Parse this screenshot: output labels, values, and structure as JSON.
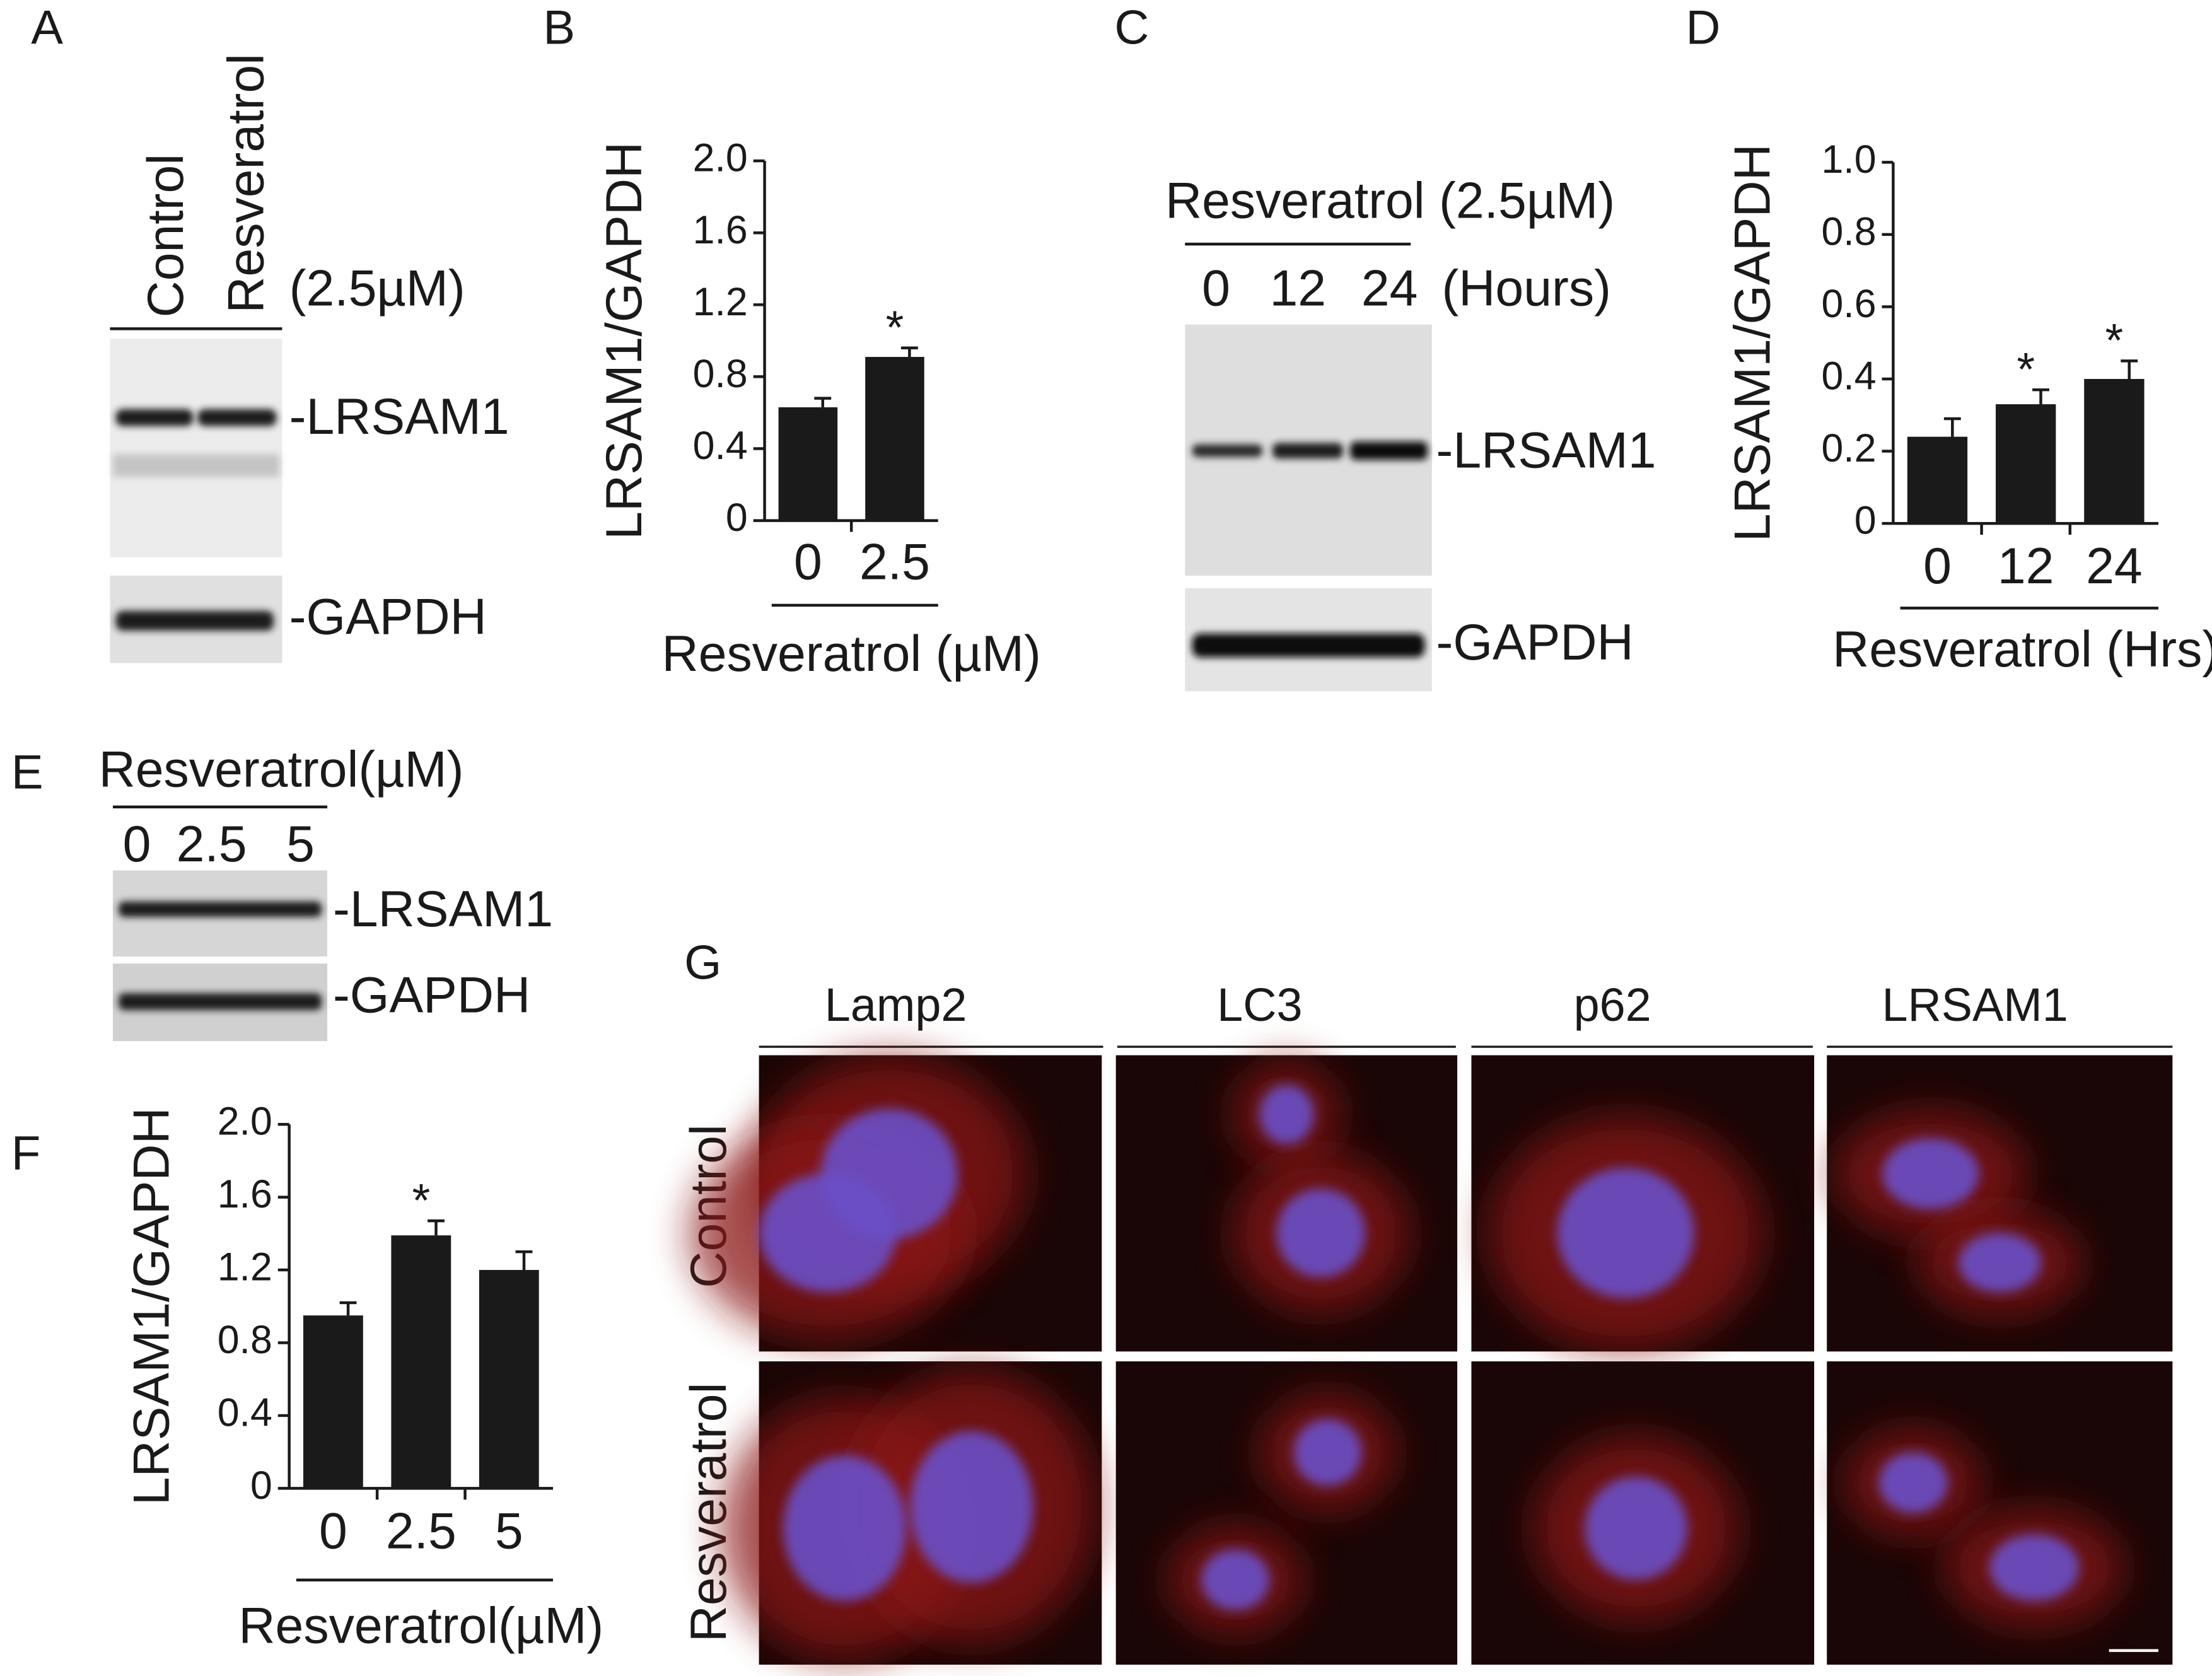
{
  "figure": {
    "A": {
      "label": "A",
      "lanes": [
        "Control",
        "Resveratrol"
      ],
      "treatment": "(2.5µM)",
      "bands": [
        "-LRSAM1",
        "-GAPDH"
      ]
    },
    "B": {
      "label": "B"
    },
    "C": {
      "label": "C",
      "treatment": "Resveratrol (2.5µM)",
      "lanes": [
        "0",
        "12",
        "24"
      ],
      "unit": "(Hours)",
      "bands": [
        "-LRSAM1",
        "-GAPDH"
      ]
    },
    "D": {
      "label": "D"
    },
    "E": {
      "label": "E",
      "treatment": "Resveratrol(µM)",
      "lanes": [
        "0",
        "2.5",
        "5"
      ],
      "bands": [
        "-LRSAM1",
        "-GAPDH"
      ]
    },
    "F": {
      "label": "F"
    },
    "G": {
      "label": "G",
      "columns": [
        "Lamp2",
        "LC3",
        "p62",
        "LRSAM1"
      ],
      "rows": [
        "Control",
        "Resveratrol"
      ]
    }
  },
  "chart_data": [
    {
      "type": "bar",
      "y_label": "LRSAM1/GAPDH",
      "x_label": "Resveratrol (µM)",
      "categories": [
        "0",
        "2.5"
      ],
      "values": [
        0.63,
        0.91
      ],
      "errors": [
        0.05,
        0.05
      ],
      "annotations": [
        null,
        "*"
      ],
      "color": "#1a1a1a",
      "ylim": [
        0,
        2
      ],
      "yticks": [
        0,
        0.4,
        0.8,
        1.2,
        1.6,
        {
          "value": 2,
          "label": "2.0"
        }
      ]
    },
    {
      "type": "bar",
      "y_label": "LRSAM1/GAPDH",
      "x_label": "Resveratrol (Hrs)",
      "categories": [
        "0",
        "12",
        "24"
      ],
      "values": [
        0.24,
        0.33,
        0.4
      ],
      "errors": [
        0.05,
        0.04,
        0.05
      ],
      "annotations": [
        null,
        "*",
        "*"
      ],
      "color": "#1a1a1a",
      "ylim": [
        0,
        1
      ],
      "yticks": [
        0,
        0.2,
        0.4,
        0.6,
        0.8,
        {
          "value": 1,
          "label": "1.0"
        }
      ]
    },
    {
      "type": "bar",
      "y_label": "LRSAM1/GAPDH",
      "x_label": "Resveratrol(µM)",
      "categories": [
        "0",
        "2.5",
        "5"
      ],
      "values": [
        0.95,
        1.39,
        1.2
      ],
      "errors": [
        0.07,
        0.08,
        0.1
      ],
      "annotations": [
        null,
        "*",
        null
      ],
      "color": "#1a1a1a",
      "ylim": [
        0,
        2
      ],
      "yticks": [
        0,
        0.4,
        0.8,
        1.2,
        1.6,
        {
          "value": 2,
          "label": "2.0"
        }
      ]
    }
  ]
}
